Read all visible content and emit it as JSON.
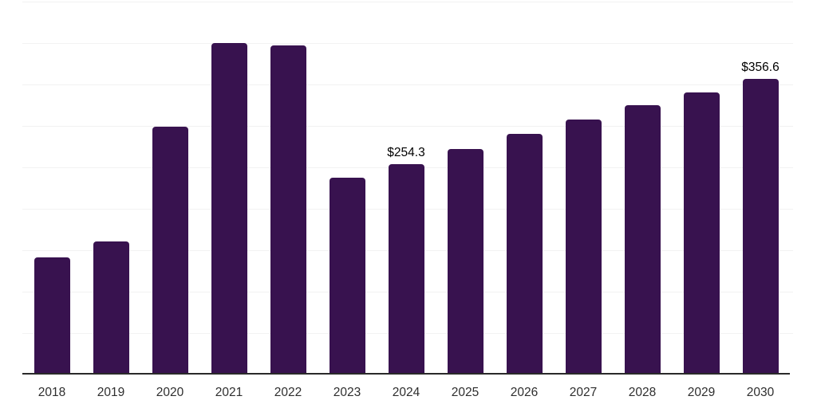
{
  "chart_data": {
    "type": "bar",
    "title": "",
    "xlabel": "",
    "ylabel": "",
    "categories": [
      "2018",
      "2019",
      "2020",
      "2021",
      "2022",
      "2023",
      "2024",
      "2025",
      "2026",
      "2027",
      "2028",
      "2029",
      "2030"
    ],
    "values": [
      141,
      160.5,
      299,
      400,
      397,
      237.5,
      254.3,
      272,
      290.5,
      307.5,
      325,
      340.5,
      356.6
    ],
    "point_labels": [
      "",
      "",
      "",
      "",
      "",
      "",
      "$254.3",
      "",
      "",
      "",
      "",
      "",
      "$356.6"
    ],
    "ylim": [
      0,
      450
    ],
    "gridline_step": 50,
    "grid": true,
    "y_axis_tick_labels_visible": false,
    "legend": "none",
    "colors": {
      "bar": "#38124f",
      "axis_line": "#2a2a2a",
      "gridline": "#f2f2f2",
      "value_label": "#000000",
      "tick_label": "#2e2e2e",
      "background": "#ffffff"
    }
  }
}
